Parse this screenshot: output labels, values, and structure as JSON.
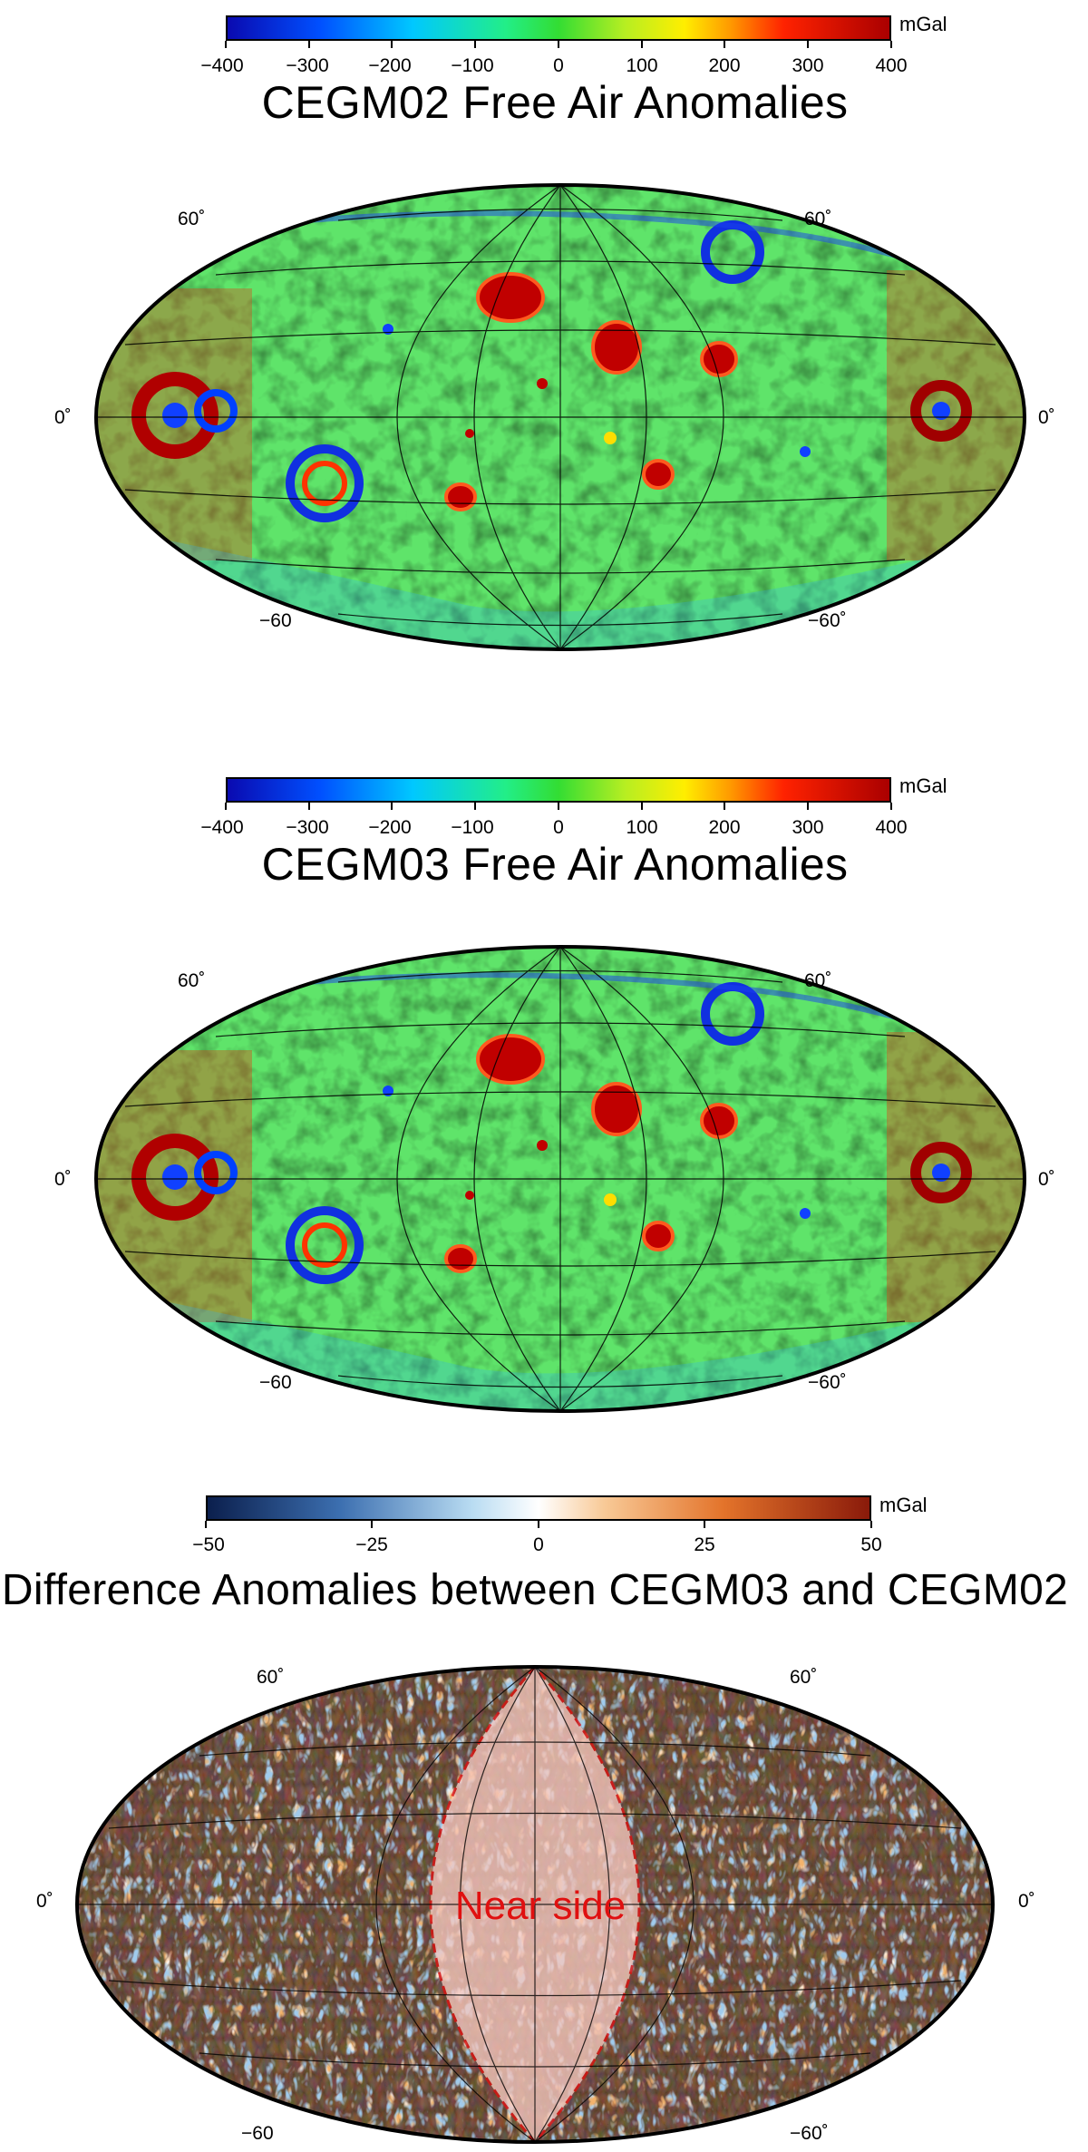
{
  "panels": [
    {
      "title": "CEGM02 Free Air Anomalies",
      "colorbar": {
        "unit": "mGal",
        "ticks": [
          "−400",
          "−300",
          "−200",
          "−100",
          "0",
          "100",
          "200",
          "300",
          "400"
        ],
        "range": [
          -400,
          400
        ],
        "palette": "jet"
      },
      "grid_labels": {
        "lat_north": "60˚",
        "lat_south": "−60",
        "lat_south_right": "−60˚",
        "equator": "0˚"
      }
    },
    {
      "title": "CEGM03 Free Air Anomalies",
      "colorbar": {
        "unit": "mGal",
        "ticks": [
          "−400",
          "−300",
          "−200",
          "−100",
          "0",
          "100",
          "200",
          "300",
          "400"
        ],
        "range": [
          -400,
          400
        ],
        "palette": "jet"
      },
      "grid_labels": {
        "lat_north": "60˚",
        "lat_south": "−60",
        "lat_south_right": "−60˚",
        "equator": "0˚"
      }
    },
    {
      "title": "Difference Anomalies between CEGM03 and CEGM02",
      "colorbar": {
        "unit": "mGal",
        "ticks": [
          "−50",
          "−25",
          "0",
          "25",
          "50"
        ],
        "range": [
          -50,
          50
        ],
        "palette": "diverging"
      },
      "grid_labels": {
        "lat_north": "60˚",
        "lat_south": "−60",
        "lat_south_right": "−60˚",
        "equator": "0˚"
      },
      "annotation": "Near side",
      "annotation_color": "#e01010"
    }
  ],
  "colors": {
    "jet_low": "#0a0ab0",
    "jet_mid": "#33dd33",
    "jet_high": "#aa0000",
    "div_low": "#0b1f4d",
    "div_mid": "#ffffff",
    "div_high": "#8a1a0a",
    "near_side_fill": "#f7c9c0"
  }
}
